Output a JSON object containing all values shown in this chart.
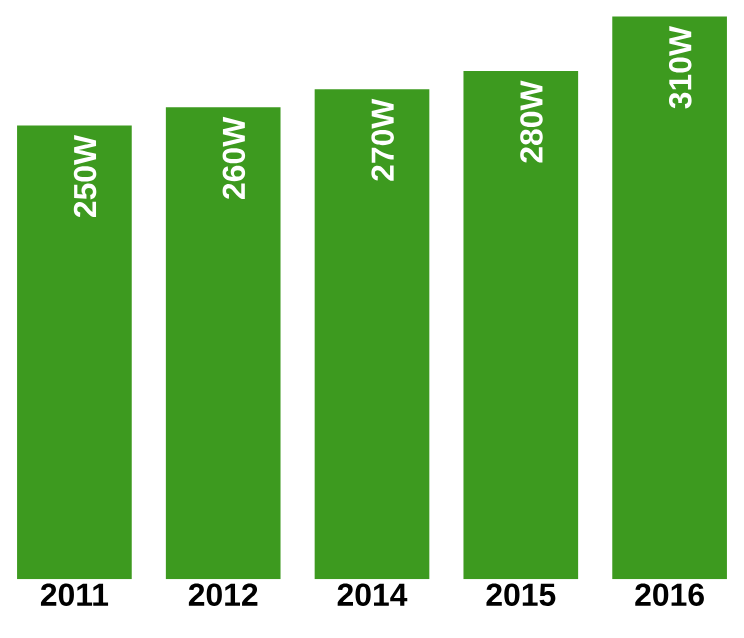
{
  "chart_data": {
    "type": "bar",
    "categories": [
      "2011",
      "2012",
      "2014",
      "2015",
      "2016"
    ],
    "values": [
      250,
      260,
      270,
      280,
      310
    ],
    "value_labels": [
      "250W",
      "260W",
      "270W",
      "280W",
      "310W"
    ],
    "color": "#3d9a1f",
    "tick_labels": "x"
  }
}
